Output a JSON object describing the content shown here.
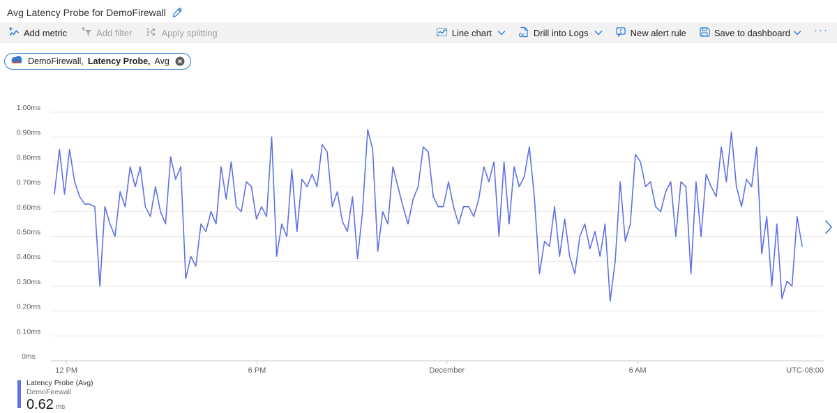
{
  "page": {
    "title": "Avg Latency Probe for DemoFirewall"
  },
  "toolbar": {
    "left": [
      {
        "label": "Add metric",
        "enabled": true
      },
      {
        "label": "Add filter",
        "enabled": false
      },
      {
        "label": "Apply splitting",
        "enabled": false
      }
    ],
    "right": [
      {
        "label": "Line chart"
      },
      {
        "label": "Drill into Logs"
      },
      {
        "label": "New alert rule"
      },
      {
        "label": "Save to dashboard"
      }
    ],
    "more_label": "···"
  },
  "metric_pill": {
    "resource": "DemoFirewall,",
    "metric": "Latency Probe,",
    "aggregation": "Avg"
  },
  "chart_data": {
    "type": "line",
    "series_name": "Latency Probe (Avg)",
    "resource": "DemoFirewall",
    "unit": "ms",
    "ylim": [
      0,
      1
    ],
    "ytick_labels": [
      "0ms",
      "0.10ms",
      "0.20ms",
      "0.30ms",
      "0.40ms",
      "0.50ms",
      "0.60ms",
      "0.70ms",
      "0.80ms",
      "0.90ms",
      "1.00ms"
    ],
    "xticks": [
      {
        "label": "12 PM",
        "pos": 0.016
      },
      {
        "label": "6 PM",
        "pos": 0.271
      },
      {
        "label": "December",
        "pos": 0.525
      },
      {
        "label": "6 AM",
        "pos": 0.78
      }
    ],
    "timezone_label": "UTC-08:00",
    "grid": true,
    "legend_position": "bottom-left",
    "line_color": "#5e71e4",
    "values_ms": [
      0.67,
      0.85,
      0.67,
      0.85,
      0.72,
      0.66,
      0.63,
      0.63,
      0.62,
      0.3,
      0.62,
      0.55,
      0.5,
      0.68,
      0.62,
      0.78,
      0.7,
      0.78,
      0.62,
      0.58,
      0.7,
      0.6,
      0.55,
      0.82,
      0.73,
      0.78,
      0.33,
      0.42,
      0.38,
      0.55,
      0.52,
      0.6,
      0.55,
      0.78,
      0.65,
      0.8,
      0.62,
      0.6,
      0.72,
      0.7,
      0.57,
      0.62,
      0.58,
      0.9,
      0.42,
      0.55,
      0.5,
      0.77,
      0.52,
      0.73,
      0.7,
      0.75,
      0.7,
      0.87,
      0.84,
      0.62,
      0.68,
      0.56,
      0.52,
      0.66,
      0.41,
      0.6,
      0.93,
      0.85,
      0.44,
      0.6,
      0.55,
      0.78,
      0.7,
      0.62,
      0.55,
      0.65,
      0.7,
      0.86,
      0.84,
      0.66,
      0.62,
      0.62,
      0.72,
      0.62,
      0.55,
      0.62,
      0.62,
      0.58,
      0.65,
      0.78,
      0.72,
      0.8,
      0.5,
      0.8,
      0.55,
      0.78,
      0.7,
      0.74,
      0.86,
      0.66,
      0.35,
      0.48,
      0.46,
      0.62,
      0.42,
      0.57,
      0.42,
      0.35,
      0.5,
      0.55,
      0.45,
      0.52,
      0.42,
      0.55,
      0.24,
      0.4,
      0.72,
      0.48,
      0.55,
      0.83,
      0.8,
      0.7,
      0.72,
      0.62,
      0.6,
      0.68,
      0.72,
      0.5,
      0.72,
      0.7,
      0.35,
      0.72,
      0.5,
      0.75,
      0.7,
      0.66,
      0.86,
      0.72,
      0.92,
      0.7,
      0.62,
      0.73,
      0.7,
      0.86,
      0.43,
      0.58,
      0.3,
      0.55,
      0.25,
      0.32,
      0.3,
      0.58,
      0.46
    ],
    "summary_value": "0.62"
  },
  "legend": {
    "series": "Latency Probe (Avg)",
    "resource": "DemoFirewall",
    "value": "0.62",
    "unit": "ms"
  },
  "colors": {
    "accent_blue": "#2b7cd3",
    "line_blue": "#5e71e4",
    "disabled_gray": "#a19f9d",
    "toolbar_bg": "#f2f2f2",
    "grid_gray": "#e9e8e7",
    "axis_gray": "#c8c6c4",
    "text_dark": "#201f1e",
    "text_secondary": "#605e5c",
    "brick_red": "#cf3a3a"
  }
}
